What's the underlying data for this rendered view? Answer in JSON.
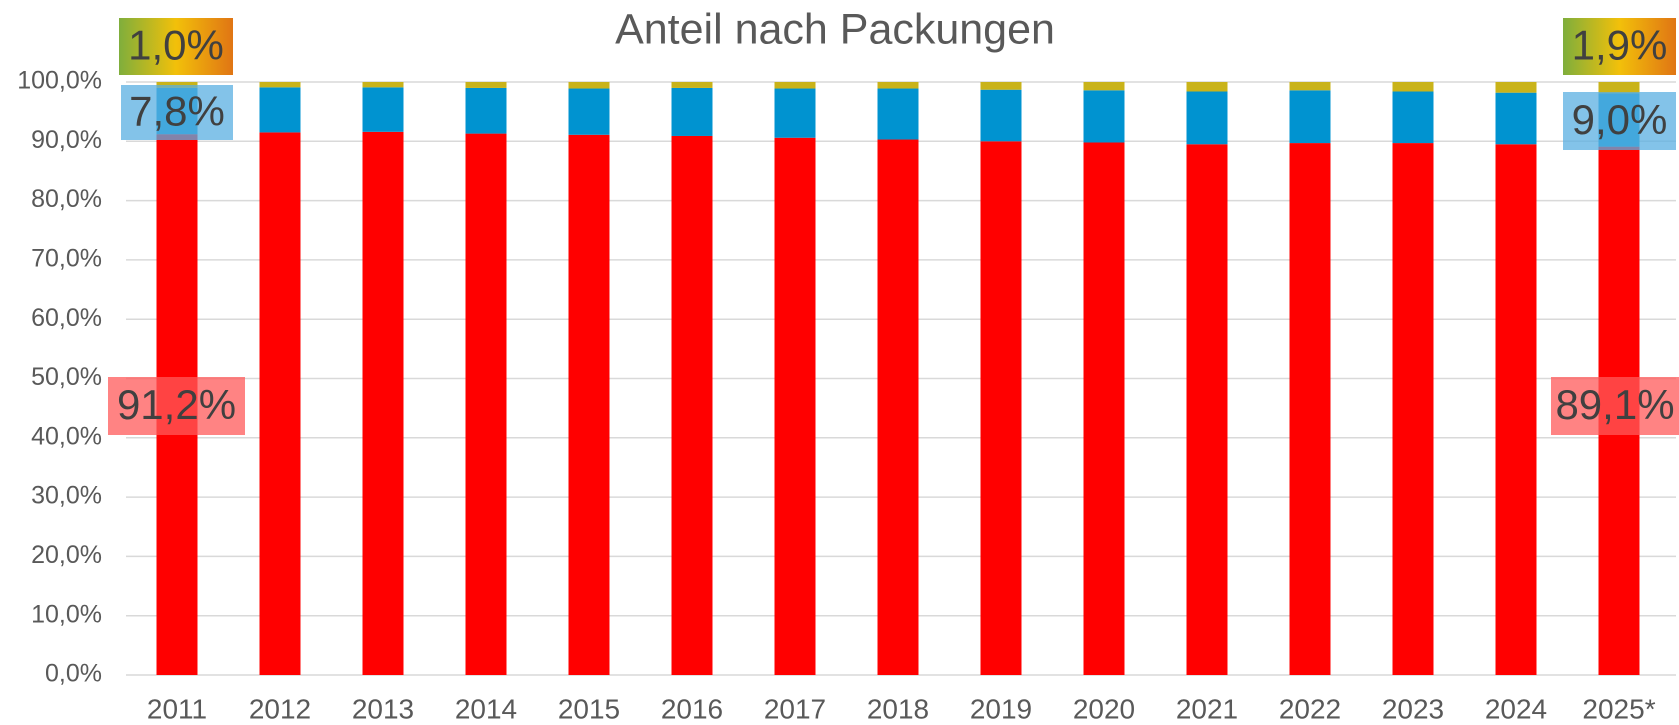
{
  "chart_data": {
    "type": "stacked_bar",
    "title": "Anteil nach Packungen",
    "categories": [
      "2011",
      "2012",
      "2013",
      "2014",
      "2015",
      "2016",
      "2017",
      "2018",
      "2019",
      "2020",
      "2021",
      "2022",
      "2023",
      "2024",
      "2025*"
    ],
    "series": [
      {
        "color": "#ff0000",
        "values": [
          91.2,
          91.5,
          91.6,
          91.3,
          91.1,
          90.9,
          90.6,
          90.3,
          90.0,
          89.8,
          89.5,
          89.7,
          89.7,
          89.5,
          89.1
        ],
        "value_labels": [
          "91,2%",
          null,
          null,
          null,
          null,
          null,
          null,
          null,
          null,
          null,
          null,
          null,
          null,
          null,
          "89,1%"
        ]
      },
      {
        "color": "#0093d0",
        "values": [
          7.8,
          7.6,
          7.5,
          7.7,
          7.8,
          8.1,
          8.3,
          8.6,
          8.7,
          8.8,
          8.9,
          8.9,
          8.7,
          8.7,
          9.0
        ],
        "value_labels": [
          "7,8%",
          null,
          null,
          null,
          null,
          null,
          null,
          null,
          null,
          null,
          null,
          null,
          null,
          null,
          "9,0%"
        ]
      },
      {
        "color": "#c9b31a",
        "values": [
          1.0,
          0.9,
          0.9,
          1.0,
          1.1,
          1.0,
          1.1,
          1.1,
          1.3,
          1.4,
          1.6,
          1.4,
          1.6,
          1.8,
          1.9
        ],
        "value_labels": [
          "1,0%",
          null,
          null,
          null,
          null,
          null,
          null,
          null,
          null,
          null,
          null,
          null,
          null,
          null,
          "1,9%"
        ]
      }
    ],
    "ylim": [
      0,
      100
    ],
    "yticks": [
      {
        "value": 0,
        "label": "0,0%"
      },
      {
        "value": 10,
        "label": "10,0%"
      },
      {
        "value": 20,
        "label": "20,0%"
      },
      {
        "value": 30,
        "label": "30,0%"
      },
      {
        "value": 40,
        "label": "40,0%"
      },
      {
        "value": 50,
        "label": "50,0%"
      },
      {
        "value": 60,
        "label": "60,0%"
      },
      {
        "value": 70,
        "label": "70,0%"
      },
      {
        "value": 80,
        "label": "80,0%"
      },
      {
        "value": 90,
        "label": "90,0%"
      },
      {
        "value": 100,
        "label": "100,0%"
      }
    ],
    "grid": true
  }
}
